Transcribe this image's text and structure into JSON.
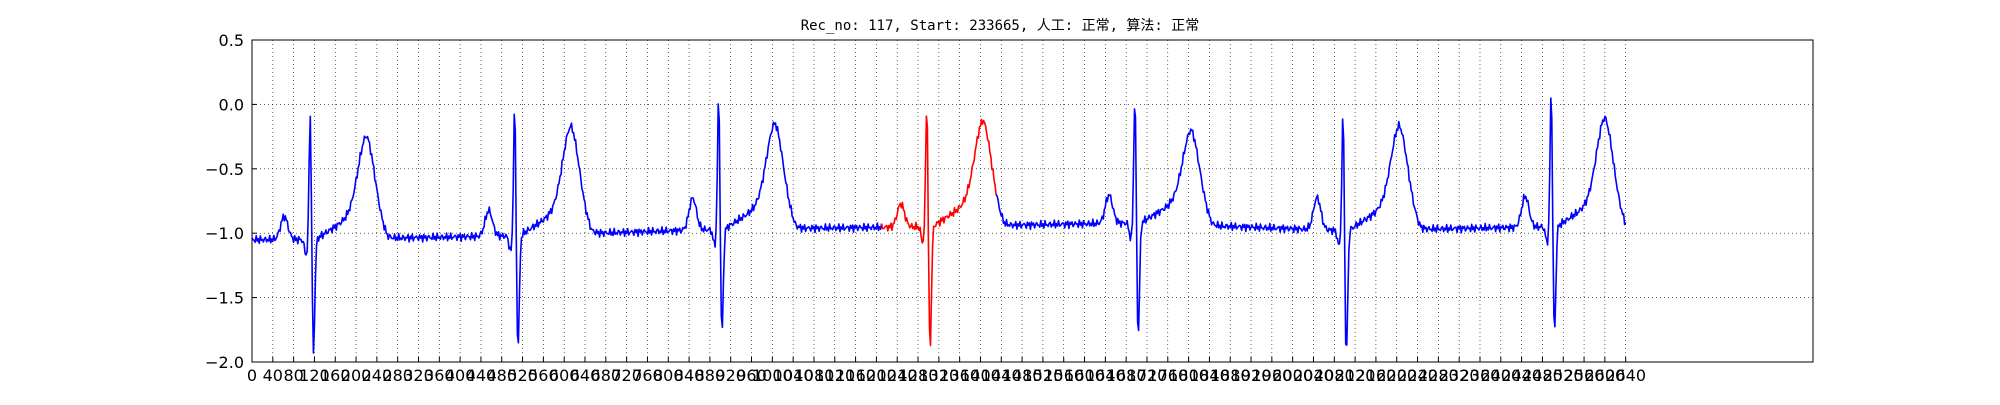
{
  "chart_data": {
    "type": "line",
    "title": "Rec_no: 117, Start: 233665, 人工: 正常, 算法: 正常",
    "xlabel": "",
    "ylabel": "",
    "xlim": [
      0,
      3000
    ],
    "ylim": [
      -2.0,
      0.5
    ],
    "grid": true,
    "grid_style": "dotted",
    "x_tick_step": 40,
    "x_tick_max": 2640,
    "y_ticks": [
      "0.5",
      "0.0",
      "−0.5",
      "−1.0",
      "−1.5",
      "−2.0"
    ],
    "y_tick_values": [
      0.5,
      0.0,
      -0.5,
      -1.0,
      -1.5,
      -2.0
    ],
    "series": [
      {
        "color": "#0000ff",
        "x_range": [
          0,
          1210
        ]
      },
      {
        "color": "#ff0000",
        "x_range": [
          1210,
          1430
        ]
      },
      {
        "color": "#0000ff",
        "x_range": [
          1430,
          2640
        ]
      }
    ],
    "beats": [
      {
        "r_x": 112,
        "baseline": -1.05,
        "r_peak": -0.15,
        "s_min": -1.95,
        "p_x": 62,
        "p_amp": 0.18,
        "t_x": 220,
        "t_peak": -0.25
      },
      {
        "r_x": 505,
        "baseline": -1.02,
        "r_peak": -0.08,
        "s_min": -1.92,
        "p_x": 455,
        "p_amp": 0.2,
        "t_x": 613,
        "t_peak": -0.18
      },
      {
        "r_x": 897,
        "baseline": -0.97,
        "r_peak": 0.0,
        "s_min": -1.8,
        "p_x": 847,
        "p_amp": 0.25,
        "t_x": 1005,
        "t_peak": -0.15
      },
      {
        "r_x": 1297,
        "baseline": -0.95,
        "r_peak": -0.05,
        "s_min": -1.92,
        "p_x": 1247,
        "p_amp": 0.18,
        "t_x": 1405,
        "t_peak": -0.13
      },
      {
        "r_x": 1697,
        "baseline": -0.92,
        "r_peak": 0.0,
        "s_min": -1.82,
        "p_x": 1647,
        "p_amp": 0.22,
        "t_x": 1805,
        "t_peak": -0.18
      },
      {
        "r_x": 2097,
        "baseline": -0.98,
        "r_peak": -0.13,
        "s_min": -1.98,
        "p_x": 2047,
        "p_amp": 0.25,
        "t_x": 2205,
        "t_peak": -0.17
      },
      {
        "r_x": 2497,
        "baseline": -0.95,
        "r_peak": 0.05,
        "s_min": -1.8,
        "p_x": 2447,
        "p_amp": 0.24,
        "t_x": 2600,
        "t_peak": -0.1
      }
    ]
  }
}
